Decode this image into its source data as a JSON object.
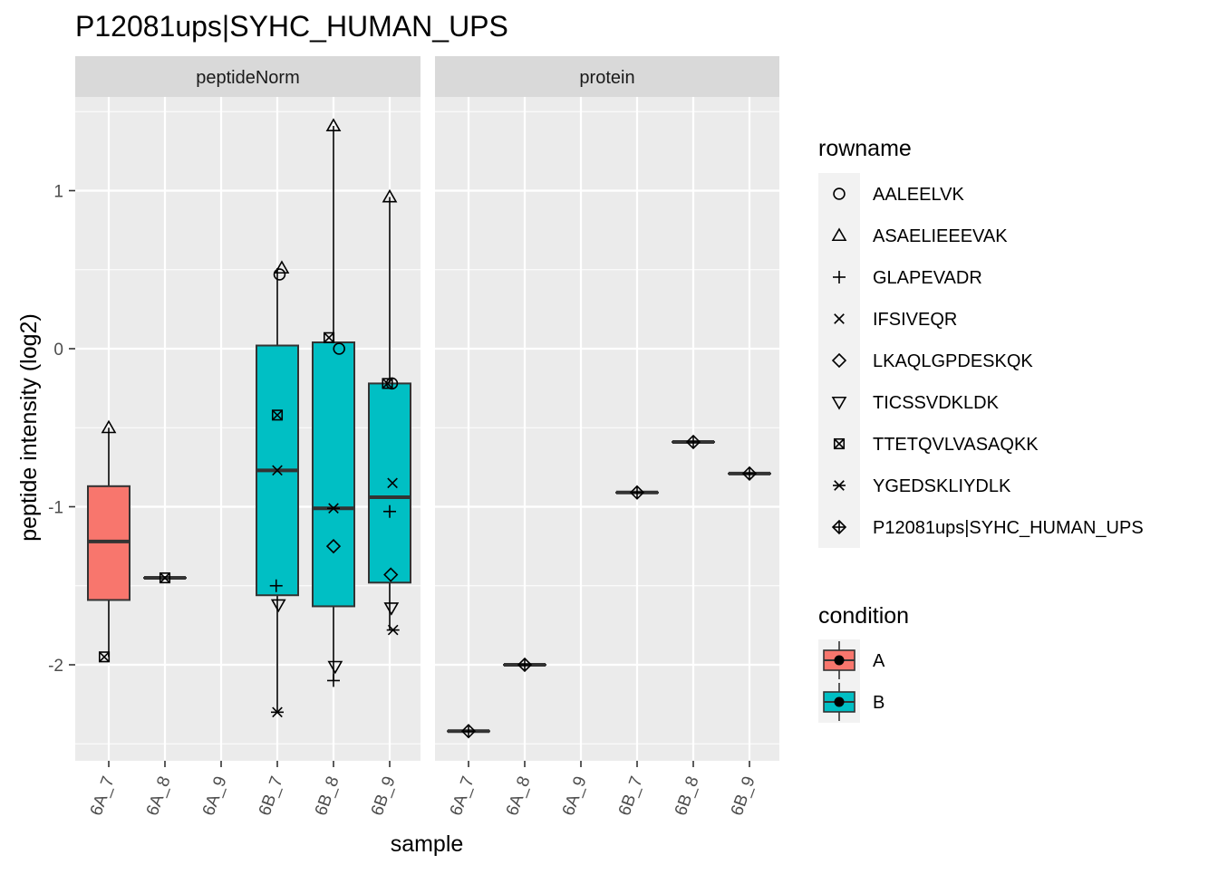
{
  "chart_data": {
    "type": "boxplot",
    "title": "P12081ups|SYHC_HUMAN_UPS",
    "xlabel": "sample",
    "ylabel": "peptide intensity (log2)",
    "facets": [
      "peptideNorm",
      "protein"
    ],
    "categories": [
      "6A_7",
      "6A_8",
      "6A_9",
      "6B_7",
      "6B_8",
      "6B_9"
    ],
    "y_ticks": [
      -2,
      -1,
      0,
      1
    ],
    "ylim": [
      -2.5,
      1.6
    ],
    "colors": {
      "A": "#F8766D",
      "B": "#00BFC4",
      "panel": "#EBEBEB",
      "strip": "#D9D9D9",
      "grid": "#FFFFFF"
    },
    "legend": {
      "rowname": {
        "title": "rowname",
        "items": [
          {
            "label": "AALEELVK",
            "shape": "circle"
          },
          {
            "label": "ASAELIEEEVAK",
            "shape": "triangle"
          },
          {
            "label": "GLAPEVADR",
            "shape": "plus"
          },
          {
            "label": "IFSIVEQR",
            "shape": "cross"
          },
          {
            "label": "LKAQLGPDESKQK",
            "shape": "diamond"
          },
          {
            "label": "TICSSVDKLDK",
            "shape": "triangle-down"
          },
          {
            "label": "TTETQVLVASAQKK",
            "shape": "square-cross"
          },
          {
            "label": "YGEDSKLIYDLK",
            "shape": "asterisk"
          },
          {
            "label": "P12081ups|SYHC_HUMAN_UPS",
            "shape": "diamond-plus"
          }
        ]
      },
      "condition": {
        "title": "condition",
        "items": [
          {
            "label": "A",
            "color": "#F8766D"
          },
          {
            "label": "B",
            "color": "#00BFC4"
          }
        ]
      }
    },
    "boxes": [
      {
        "facet": "peptideNorm",
        "category": "6A_7",
        "condition": "A",
        "min": -1.95,
        "q1": -1.59,
        "median": -1.22,
        "q3": -0.87,
        "max": -0.5
      },
      {
        "facet": "peptideNorm",
        "category": "6A_8",
        "condition": "A",
        "min": -1.45,
        "q1": -1.45,
        "median": -1.45,
        "q3": -1.45,
        "max": -1.45
      },
      {
        "facet": "peptideNorm",
        "category": "6B_7",
        "condition": "B",
        "min": -2.3,
        "q1": -1.56,
        "median": -0.77,
        "q3": 0.02,
        "max": 0.51
      },
      {
        "facet": "peptideNorm",
        "category": "6B_8",
        "condition": "B",
        "min": -2.1,
        "q1": -1.63,
        "median": -1.01,
        "q3": 0.04,
        "max": 1.41
      },
      {
        "facet": "peptideNorm",
        "category": "6B_9",
        "condition": "B",
        "min": -1.78,
        "q1": -1.48,
        "median": -0.94,
        "q3": -0.22,
        "max": 0.96
      },
      {
        "facet": "protein",
        "category": "6A_7",
        "condition": "A",
        "min": -2.42,
        "q1": -2.42,
        "median": -2.42,
        "q3": -2.42,
        "max": -2.42
      },
      {
        "facet": "protein",
        "category": "6A_8",
        "condition": "A",
        "min": -2.0,
        "q1": -2.0,
        "median": -2.0,
        "q3": -2.0,
        "max": -2.0
      },
      {
        "facet": "protein",
        "category": "6B_7",
        "condition": "B",
        "min": -0.91,
        "q1": -0.91,
        "median": -0.91,
        "q3": -0.91,
        "max": -0.91
      },
      {
        "facet": "protein",
        "category": "6B_8",
        "condition": "B",
        "min": -0.59,
        "q1": -0.59,
        "median": -0.59,
        "q3": -0.59,
        "max": -0.59
      },
      {
        "facet": "protein",
        "category": "6B_9",
        "condition": "B",
        "min": -0.79,
        "q1": -0.79,
        "median": -0.79,
        "q3": -0.79,
        "max": -0.79
      }
    ],
    "points": [
      {
        "facet": "peptideNorm",
        "category": "6A_7",
        "shape": "triangle",
        "y": -0.5,
        "dx": 0
      },
      {
        "facet": "peptideNorm",
        "category": "6A_7",
        "shape": "square-cross",
        "y": -1.95,
        "dx": -0.08
      },
      {
        "facet": "peptideNorm",
        "category": "6A_8",
        "shape": "square-cross",
        "y": -1.45,
        "dx": 0
      },
      {
        "facet": "peptideNorm",
        "category": "6B_7",
        "shape": "triangle",
        "y": 0.51,
        "dx": 0.08
      },
      {
        "facet": "peptideNorm",
        "category": "6B_7",
        "shape": "circle",
        "y": 0.47,
        "dx": 0.04
      },
      {
        "facet": "peptideNorm",
        "category": "6B_7",
        "shape": "square-cross",
        "y": -0.42,
        "dx": 0
      },
      {
        "facet": "peptideNorm",
        "category": "6B_7",
        "shape": "cross",
        "y": -0.77,
        "dx": 0
      },
      {
        "facet": "peptideNorm",
        "category": "6B_7",
        "shape": "plus",
        "y": -1.5,
        "dx": -0.02
      },
      {
        "facet": "peptideNorm",
        "category": "6B_7",
        "shape": "triangle-down",
        "y": -1.62,
        "dx": 0.02
      },
      {
        "facet": "peptideNorm",
        "category": "6B_7",
        "shape": "asterisk",
        "y": -2.3,
        "dx": 0
      },
      {
        "facet": "peptideNorm",
        "category": "6B_8",
        "shape": "triangle",
        "y": 1.41,
        "dx": 0
      },
      {
        "facet": "peptideNorm",
        "category": "6B_8",
        "shape": "square-cross",
        "y": 0.07,
        "dx": -0.08
      },
      {
        "facet": "peptideNorm",
        "category": "6B_8",
        "shape": "circle",
        "y": 0.0,
        "dx": 0.1
      },
      {
        "facet": "peptideNorm",
        "category": "6B_8",
        "shape": "asterisk",
        "y": -1.01,
        "dx": 0
      },
      {
        "facet": "peptideNorm",
        "category": "6B_8",
        "shape": "diamond",
        "y": -1.25,
        "dx": 0
      },
      {
        "facet": "peptideNorm",
        "category": "6B_8",
        "shape": "triangle-down",
        "y": -2.01,
        "dx": 0.03
      },
      {
        "facet": "peptideNorm",
        "category": "6B_8",
        "shape": "plus",
        "y": -2.1,
        "dx": 0
      },
      {
        "facet": "peptideNorm",
        "category": "6B_9",
        "shape": "triangle",
        "y": 0.96,
        "dx": 0
      },
      {
        "facet": "peptideNorm",
        "category": "6B_9",
        "shape": "square-cross",
        "y": -0.22,
        "dx": -0.04
      },
      {
        "facet": "peptideNorm",
        "category": "6B_9",
        "shape": "circle",
        "y": -0.22,
        "dx": 0.04
      },
      {
        "facet": "peptideNorm",
        "category": "6B_9",
        "shape": "cross",
        "y": -0.85,
        "dx": 0.05
      },
      {
        "facet": "peptideNorm",
        "category": "6B_9",
        "shape": "plus",
        "y": -1.03,
        "dx": 0
      },
      {
        "facet": "peptideNorm",
        "category": "6B_9",
        "shape": "diamond",
        "y": -1.43,
        "dx": 0.02
      },
      {
        "facet": "peptideNorm",
        "category": "6B_9",
        "shape": "triangle-down",
        "y": -1.64,
        "dx": 0.03
      },
      {
        "facet": "peptideNorm",
        "category": "6B_9",
        "shape": "asterisk",
        "y": -1.78,
        "dx": 0.06
      },
      {
        "facet": "protein",
        "category": "6A_7",
        "shape": "diamond-plus",
        "y": -2.42,
        "dx": 0
      },
      {
        "facet": "protein",
        "category": "6A_8",
        "shape": "diamond-plus",
        "y": -2.0,
        "dx": 0
      },
      {
        "facet": "protein",
        "category": "6B_7",
        "shape": "diamond-plus",
        "y": -0.91,
        "dx": 0
      },
      {
        "facet": "protein",
        "category": "6B_8",
        "shape": "diamond-plus",
        "y": -0.59,
        "dx": 0
      },
      {
        "facet": "protein",
        "category": "6B_9",
        "shape": "diamond-plus",
        "y": -0.79,
        "dx": 0
      }
    ]
  }
}
